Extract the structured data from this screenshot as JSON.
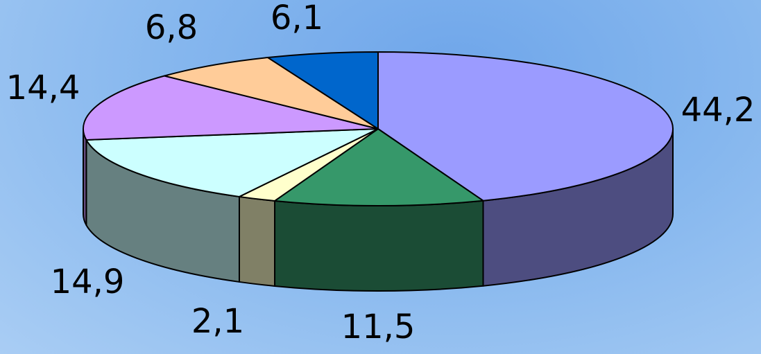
{
  "chart_data": {
    "type": "pie",
    "style": "3d-exploded-depth",
    "title": "",
    "legend": "none",
    "slices": [
      {
        "label": "44,2",
        "value": 44.2,
        "color": "#9b9bff",
        "side_color": "#4d4d80"
      },
      {
        "label": "11,5",
        "value": 11.5,
        "color": "#36986a",
        "side_color": "#1b4c35"
      },
      {
        "label": "2,1",
        "value": 2.1,
        "color": "#ffffcc",
        "side_color": "#808066"
      },
      {
        "label": "14,9",
        "value": 14.9,
        "color": "#ccffff",
        "side_color": "#668080"
      },
      {
        "label": "14,4",
        "value": 14.4,
        "color": "#cc99ff",
        "side_color": "#664d80"
      },
      {
        "label": "6,8",
        "value": 6.8,
        "color": "#ffcc99",
        "side_color": "#80664d"
      },
      {
        "label": "6,1",
        "value": 6.1,
        "color": "#0066cc",
        "side_color": "#003366"
      }
    ]
  }
}
